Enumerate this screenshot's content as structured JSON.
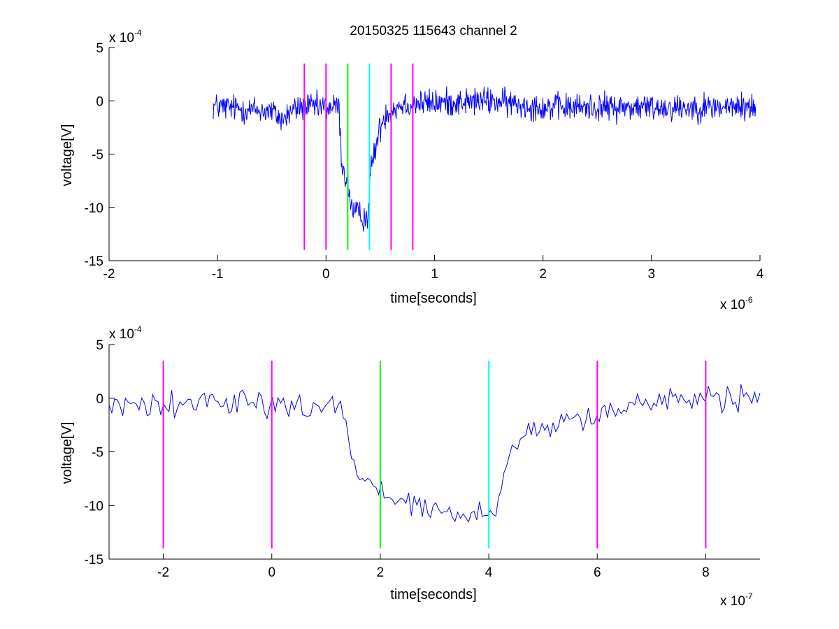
{
  "title": "20150325 115643 channel 2",
  "chart_data": [
    {
      "type": "line",
      "xlabel": "time[seconds]",
      "ylabel": "voltage[V]",
      "x_multiplier": "x 10",
      "x_exponent": "-6",
      "y_multiplier": "x 10",
      "y_exponent": "-4",
      "xlim": [
        -2,
        4
      ],
      "ylim": [
        -15,
        5
      ],
      "xticks": [
        -2,
        -1,
        0,
        1,
        2,
        3,
        4
      ],
      "xtick_labels": [
        "-2",
        "-1",
        "0",
        "1",
        "2",
        "3",
        "4"
      ],
      "yticks": [
        5,
        0,
        -5,
        -10,
        -15
      ],
      "ytick_labels": [
        "5",
        "0",
        "-5",
        "-10",
        "-15"
      ],
      "grid": false,
      "series": [
        {
          "color": "#0000ff",
          "x_start": -1.04,
          "x_end": 3.96,
          "points": 1000,
          "noise": 1.3,
          "profile": [
            [
              -1.04,
              -0.5
            ],
            [
              -0.5,
              -1.0
            ],
            [
              -0.4,
              -1.8
            ],
            [
              -0.3,
              -0.8
            ],
            [
              -0.2,
              -0.6
            ],
            [
              0.12,
              -0.6
            ],
            [
              0.14,
              -5.5
            ],
            [
              0.2,
              -8.0
            ],
            [
              0.25,
              -10.5
            ],
            [
              0.38,
              -11.0
            ],
            [
              0.42,
              -6.0
            ],
            [
              0.5,
              -2.5
            ],
            [
              0.55,
              -1.2
            ],
            [
              0.7,
              -0.3
            ],
            [
              1.5,
              0.0
            ],
            [
              2.0,
              -0.6
            ],
            [
              3.96,
              -0.6
            ]
          ]
        }
      ],
      "vlines": [
        {
          "x": -0.2,
          "color": "#ff00ff"
        },
        {
          "x": 0.0,
          "color": "#ff00ff"
        },
        {
          "x": 0.2,
          "color": "#00ff00"
        },
        {
          "x": 0.4,
          "color": "#00ffff"
        },
        {
          "x": 0.6,
          "color": "#ff00ff"
        },
        {
          "x": 0.8,
          "color": "#ff00ff"
        }
      ],
      "vline_range": [
        -14,
        3.5
      ]
    },
    {
      "type": "line",
      "xlabel": "time[seconds]",
      "ylabel": "voltage[V]",
      "x_multiplier": "x 10",
      "x_exponent": "-7",
      "y_multiplier": "x 10",
      "y_exponent": "-4",
      "xlim": [
        -3,
        9
      ],
      "ylim": [
        -15,
        5
      ],
      "xticks": [
        -2,
        0,
        2,
        4,
        6,
        8
      ],
      "xtick_labels": [
        "-2",
        "0",
        "2",
        "4",
        "6",
        "8"
      ],
      "yticks": [
        5,
        0,
        -5,
        -10,
        -15
      ],
      "ytick_labels": [
        "5",
        "0",
        "-5",
        "-10",
        "-15"
      ],
      "grid": false,
      "series": [
        {
          "color": "#0000ff",
          "x_start": -3,
          "x_end": 9,
          "points": 240,
          "noise": 1.2,
          "profile": [
            [
              -3,
              -0.5
            ],
            [
              0,
              -0.5
            ],
            [
              0.1,
              -0.7
            ],
            [
              0.5,
              -0.8
            ],
            [
              1.3,
              -0.5
            ],
            [
              1.45,
              -5.0
            ],
            [
              1.6,
              -7.5
            ],
            [
              1.9,
              -8.3
            ],
            [
              2.0,
              -9.0
            ],
            [
              2.2,
              -9.2
            ],
            [
              2.4,
              -9.8
            ],
            [
              3.0,
              -10.5
            ],
            [
              3.8,
              -11.0
            ],
            [
              4.0,
              -11.5
            ],
            [
              4.2,
              -9.0
            ],
            [
              4.4,
              -5.0
            ],
            [
              4.8,
              -3.0
            ],
            [
              5.5,
              -2.0
            ],
            [
              6.0,
              -1.5
            ],
            [
              7.0,
              -0.3
            ],
            [
              9,
              0.0
            ]
          ]
        }
      ],
      "vlines": [
        {
          "x": -2,
          "color": "#ff00ff"
        },
        {
          "x": 0,
          "color": "#ff00ff"
        },
        {
          "x": 2,
          "color": "#00ff00"
        },
        {
          "x": 4,
          "color": "#00ffff"
        },
        {
          "x": 6,
          "color": "#ff00ff"
        },
        {
          "x": 8,
          "color": "#ff00ff"
        }
      ],
      "vline_range": [
        -14,
        3.5
      ]
    }
  ]
}
